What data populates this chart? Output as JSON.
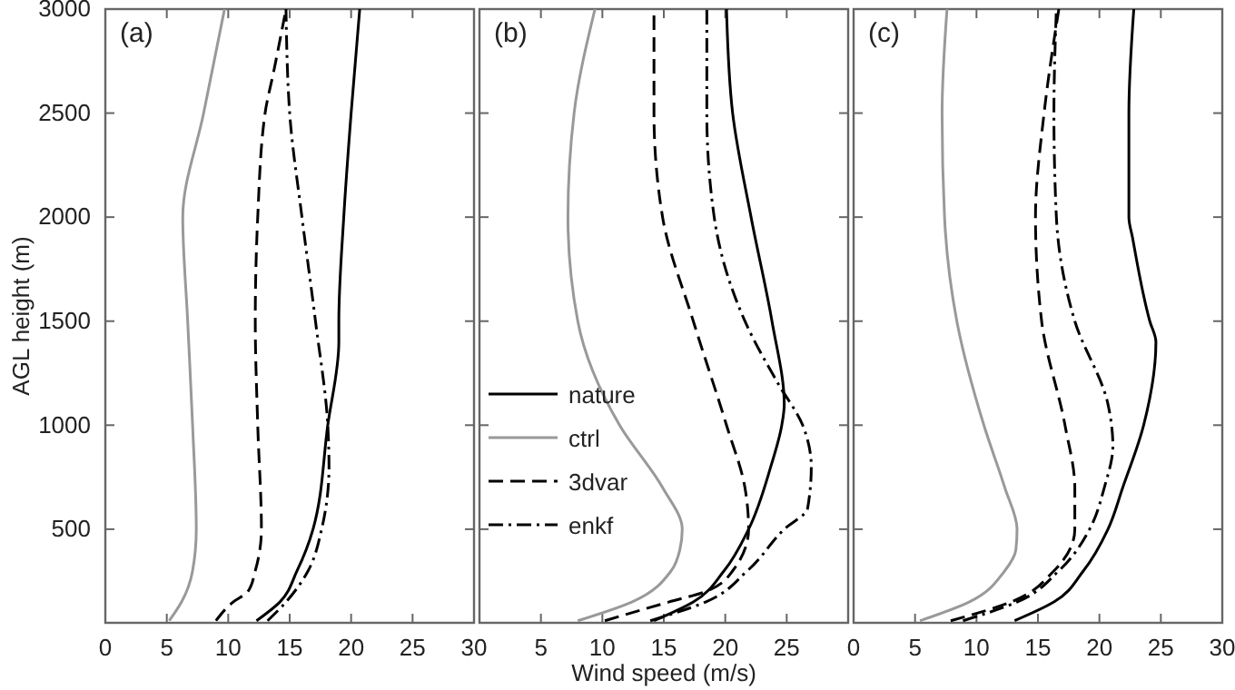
{
  "chart_data": [
    {
      "type": "line",
      "annotations": [
        "(a)"
      ],
      "ylabel": "AGL height (m)",
      "xlim": [
        0,
        30
      ],
      "xticks": [
        0,
        5,
        10,
        15,
        20,
        25,
        30
      ],
      "ylim": [
        50,
        3000
      ],
      "yticks": [
        500,
        1000,
        1500,
        2000,
        2500,
        3000
      ],
      "grid": false,
      "legend": false,
      "series": [
        {
          "color": "#000000",
          "line_style": "solid",
          "x": [
            12.3,
            14.2,
            15.6,
            16.9,
            18.1,
            19.0,
            19.0,
            19.4,
            20.0,
            20.7
          ],
          "values": [
            60,
            150,
            300,
            500,
            1000,
            1400,
            1500,
            2000,
            2500,
            3000
          ]
        },
        {
          "color": "#999999",
          "line_style": "solid",
          "x": [
            5.2,
            6.2,
            7.1,
            7.4,
            7.1,
            6.7,
            6.3,
            8.0,
            9.7
          ],
          "values": [
            60,
            150,
            300,
            500,
            1000,
            1500,
            2000,
            2500,
            3000
          ]
        },
        {
          "color": "#000000",
          "line_style": "dashed",
          "x": [
            9.0,
            10.4,
            11.6,
            12.2,
            12.7,
            12.4,
            12.2,
            12.4,
            13.0,
            13.7,
            14.7
          ],
          "values": [
            60,
            150,
            200,
            300,
            500,
            1000,
            1500,
            2000,
            2500,
            2700,
            3000
          ]
        },
        {
          "color": "#000000",
          "line_style": "dashdot",
          "x": [
            13.2,
            14.7,
            16.5,
            17.6,
            18.2,
            18.1,
            17.1,
            16.0,
            15.0,
            14.7
          ],
          "values": [
            60,
            150,
            300,
            500,
            800,
            1000,
            1500,
            2000,
            2500,
            3000
          ]
        }
      ]
    },
    {
      "type": "line",
      "annotations": [
        "(b)"
      ],
      "xlabel": "Wind speed (m/s)",
      "xlim": [
        0,
        30
      ],
      "xticks": [
        5,
        10,
        15,
        20,
        25
      ],
      "ylim": [
        50,
        3000
      ],
      "yticks": [
        {
          "value": 500,
          "label": null
        },
        {
          "value": 1000,
          "label": null
        },
        {
          "value": 1500,
          "label": null
        },
        {
          "value": 2000,
          "label": null
        },
        {
          "value": 2500,
          "label": null
        },
        {
          "value": 3000,
          "label": null
        }
      ],
      "tick_labels": "x",
      "grid": false,
      "legend": "bottom left",
      "series": [
        {
          "name": "nature",
          "color": "#000000",
          "line_style": "solid",
          "x": [
            14.2,
            17.4,
            19.9,
            21.9,
            23.7,
            24.6,
            24.8,
            23.8,
            22.1,
            20.6,
            20.1
          ],
          "values": [
            60,
            150,
            300,
            500,
            800,
            1000,
            1100,
            1500,
            2000,
            2500,
            3000
          ]
        },
        {
          "name": "ctrl",
          "color": "#999999",
          "line_style": "solid",
          "x": [
            8.0,
            12.4,
            15.6,
            16.3,
            16.5,
            14.9,
            11.4,
            8.0,
            7.2,
            7.7,
            9.4
          ],
          "values": [
            60,
            150,
            300,
            400,
            500,
            700,
            1000,
            1500,
            2000,
            2500,
            3000
          ]
        },
        {
          "name": "3dvar",
          "color": "#000000",
          "line_style": "dashed",
          "x": [
            10.2,
            15.4,
            18.4,
            20.6,
            21.9,
            21.6,
            20.1,
            17.4,
            14.9,
            14.2,
            14.2
          ],
          "values": [
            60,
            150,
            200,
            300,
            500,
            700,
            1000,
            1500,
            2000,
            2500,
            3000
          ]
        },
        {
          "name": "enkf",
          "color": "#000000",
          "line_style": "dashdot",
          "x": [
            13.9,
            18.4,
            21.8,
            24.8,
            26.7,
            27.0,
            26.3,
            24.3,
            21.6,
            19.1,
            18.5,
            18.5
          ],
          "values": [
            60,
            150,
            300,
            500,
            600,
            800,
            1000,
            1200,
            1500,
            2000,
            2500,
            3000
          ]
        }
      ]
    },
    {
      "type": "line",
      "annotations": [
        "(c)"
      ],
      "xlim": [
        0,
        30
      ],
      "xticks": [
        0,
        5,
        10,
        15,
        20,
        25,
        30
      ],
      "ylim": [
        50,
        3000
      ],
      "yticks": [
        {
          "value": 500,
          "label": null
        },
        {
          "value": 1000,
          "label": null
        },
        {
          "value": 1500,
          "label": null
        },
        {
          "value": 2000,
          "label": null
        },
        {
          "value": 2500,
          "label": null
        },
        {
          "value": 3000,
          "label": null
        }
      ],
      "tick_labels": "x",
      "grid": false,
      "legend": false,
      "series": [
        {
          "color": "#000000",
          "line_style": "solid",
          "x": [
            13.1,
            16.3,
            18.7,
            20.7,
            21.9,
            23.6,
            24.6,
            24.1,
            22.7,
            22.4,
            22.4,
            22.8
          ],
          "values": [
            60,
            150,
            300,
            500,
            700,
            1000,
            1400,
            1500,
            1900,
            2000,
            2500,
            3000
          ]
        },
        {
          "color": "#999999",
          "line_style": "solid",
          "x": [
            5.4,
            9.4,
            12.3,
            13.2,
            13.3,
            12.3,
            10.6,
            8.4,
            7.4,
            7.2,
            7.6
          ],
          "values": [
            60,
            150,
            300,
            400,
            500,
            700,
            1000,
            1500,
            2000,
            2500,
            3000
          ]
        },
        {
          "color": "#000000",
          "line_style": "dashed",
          "x": [
            7.9,
            12.8,
            16.3,
            18.0,
            18.0,
            17.2,
            15.3,
            14.8,
            15.5,
            16.7
          ],
          "values": [
            60,
            150,
            300,
            500,
            700,
            1000,
            1500,
            2000,
            2500,
            3000
          ]
        },
        {
          "color": "#000000",
          "line_style": "dashdot",
          "x": [
            8.9,
            13.3,
            16.7,
            19.2,
            20.4,
            21.1,
            20.7,
            18.0,
            16.5,
            16.3,
            16.5
          ],
          "values": [
            60,
            150,
            300,
            500,
            700,
            900,
            1100,
            1500,
            2000,
            2500,
            3000
          ]
        }
      ]
    }
  ]
}
